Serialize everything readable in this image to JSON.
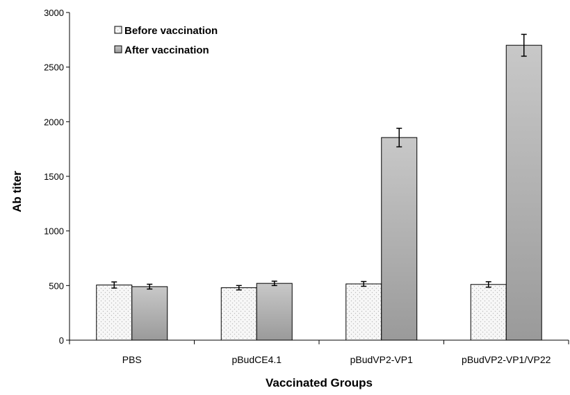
{
  "chart_data": {
    "type": "bar",
    "title": "",
    "xlabel": "Vaccinated Groups",
    "ylabel": "Ab titer",
    "categories": [
      "PBS",
      "pBudCE4.1",
      "pBudVP2-VP1",
      "pBudVP2-VP1/VP22"
    ],
    "ylim": [
      0,
      3000
    ],
    "yticks": [
      0,
      500,
      1000,
      1500,
      2000,
      2500,
      3000
    ],
    "grid": false,
    "legend_position": "top-left",
    "series": [
      {
        "name": "Before vaccination",
        "values": [
          505,
          480,
          515,
          510
        ],
        "errors": [
          28,
          20,
          22,
          25
        ],
        "fill": "#f2f2f2",
        "pattern": "dotted"
      },
      {
        "name": "After vaccination",
        "values": [
          490,
          520,
          1855,
          2700
        ],
        "errors": [
          22,
          20,
          85,
          100
        ],
        "fill": "#a6a6a6",
        "pattern": "gradient"
      }
    ]
  },
  "colors": {
    "axis": "#000000",
    "bar_outline": "#000000",
    "after_gradient_top": "#c8c8c8",
    "after_gradient_bottom": "#9a9a9a",
    "before_fill": "#f7f7f7",
    "before_dots": "#bcbcbc"
  }
}
